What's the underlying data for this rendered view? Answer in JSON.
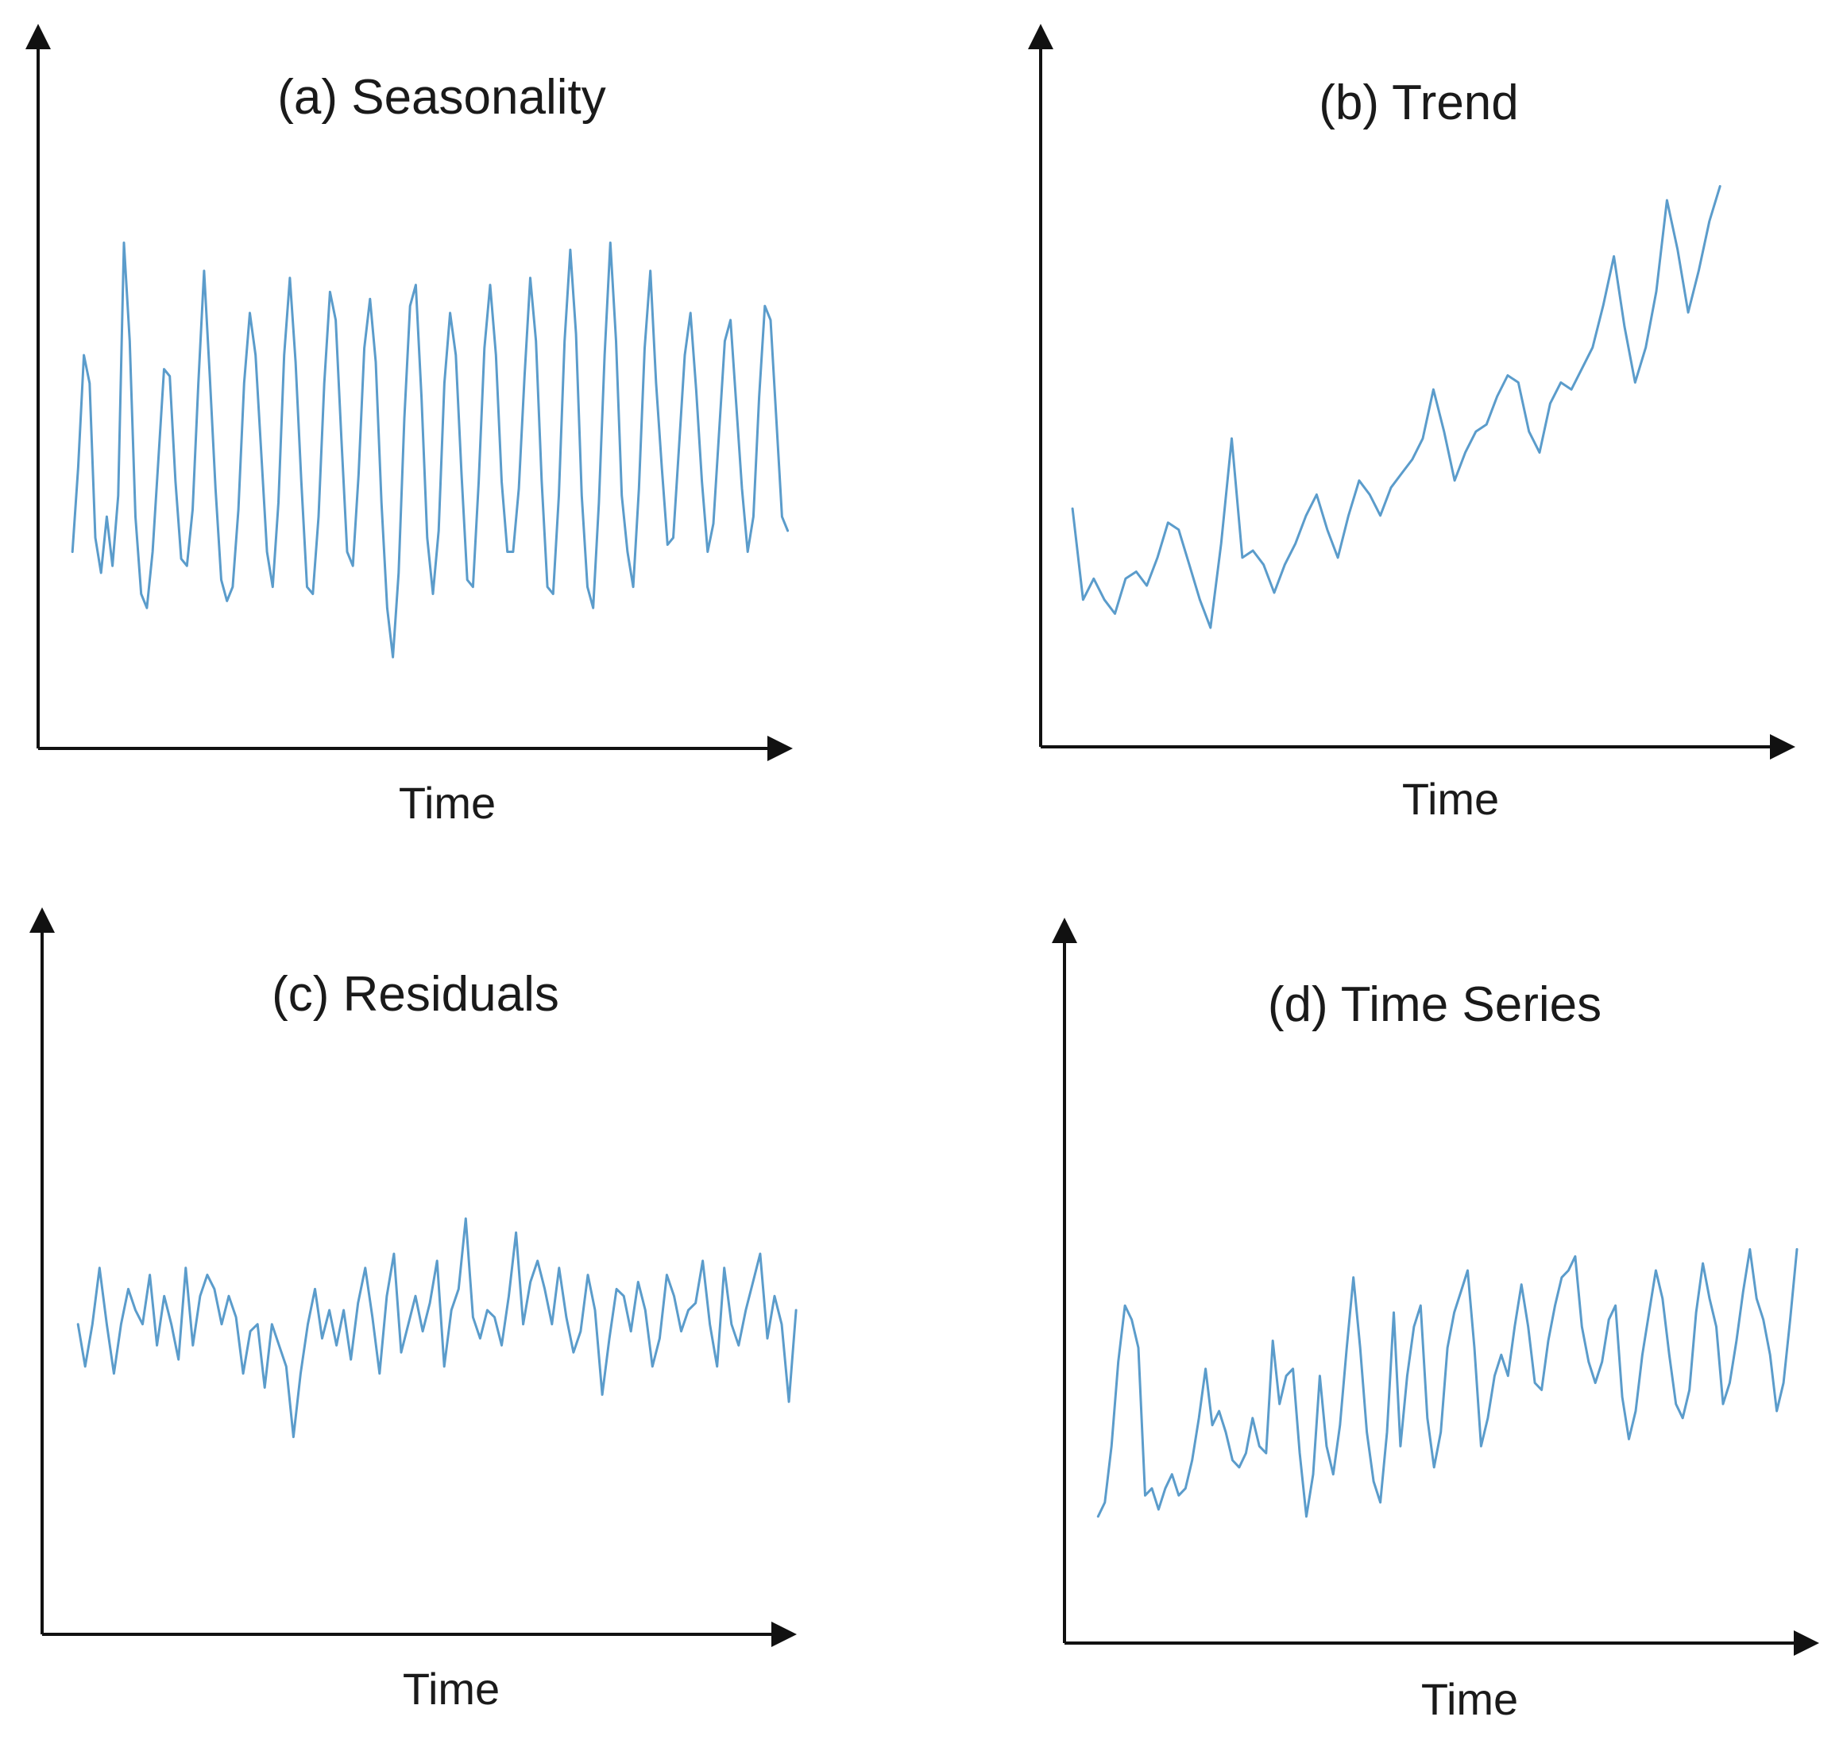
{
  "figure": {
    "line_color": "#5b9ccb",
    "axis_color": "#111111"
  },
  "chart_data": [
    {
      "id": "seasonality",
      "type": "line",
      "title": "(a) Seasonality",
      "xlabel": "Time",
      "ylabel": "",
      "xlim": [
        0,
        128
      ],
      "ylim": [
        0,
        100
      ],
      "values": [
        28,
        40,
        56,
        52,
        30,
        25,
        33,
        26,
        36,
        72,
        58,
        33,
        22,
        20,
        28,
        41,
        54,
        53,
        38,
        27,
        26,
        34,
        52,
        68,
        53,
        37,
        24,
        21,
        23,
        34,
        52,
        62,
        56,
        42,
        28,
        23,
        35,
        56,
        67,
        55,
        38,
        23,
        22,
        33,
        52,
        65,
        61,
        44,
        28,
        26,
        39,
        57,
        64,
        55,
        35,
        20,
        13,
        25,
        47,
        63,
        66,
        50,
        30,
        22,
        31,
        52,
        62,
        56,
        39,
        24,
        23,
        38,
        57,
        66,
        56,
        38,
        28,
        28,
        37,
        53,
        67,
        58,
        38,
        23,
        22,
        36,
        58,
        71,
        59,
        36,
        23,
        20,
        35,
        56,
        72,
        58,
        36,
        28,
        23,
        37,
        57,
        68,
        52,
        40,
        29,
        30,
        43,
        56,
        62,
        51,
        38,
        28,
        32,
        45,
        58,
        61,
        49,
        37,
        28,
        33,
        50,
        63,
        61,
        47,
        33,
        31
      ]
    },
    {
      "id": "trend",
      "type": "line",
      "title": "(b) Trend",
      "xlabel": "Time",
      "ylabel": "",
      "xlim": [
        0,
        69
      ],
      "ylim": [
        0,
        100
      ],
      "values": [
        34,
        21,
        24,
        21,
        19,
        24,
        25,
        23,
        27,
        32,
        31,
        26,
        21,
        17,
        29,
        44,
        27,
        28,
        26,
        22,
        26,
        29,
        33,
        36,
        31,
        27,
        33,
        38,
        36,
        33,
        37,
        39,
        41,
        44,
        51,
        45,
        38,
        42,
        45,
        46,
        50,
        53,
        52,
        45,
        42,
        49,
        52,
        51,
        54,
        57,
        63,
        70,
        60,
        52,
        57,
        65,
        78,
        71,
        62,
        68,
        75,
        80
      ]
    },
    {
      "id": "residuals",
      "type": "line",
      "title": "(c) Residuals",
      "xlabel": "Time",
      "ylabel": "",
      "xlim": [
        0,
        102
      ],
      "ylim": [
        0,
        100
      ],
      "values": [
        44,
        38,
        44,
        52,
        44,
        37,
        44,
        49,
        46,
        44,
        51,
        41,
        48,
        44,
        39,
        52,
        41,
        48,
        51,
        49,
        44,
        48,
        45,
        37,
        43,
        44,
        35,
        44,
        41,
        38,
        28,
        37,
        44,
        49,
        42,
        46,
        41,
        46,
        39,
        47,
        52,
        45,
        37,
        48,
        54,
        40,
        44,
        48,
        43,
        47,
        53,
        38,
        46,
        49,
        59,
        45,
        42,
        46,
        45,
        41,
        48,
        57,
        44,
        50,
        53,
        49,
        44,
        52,
        45,
        40,
        43,
        51,
        46,
        34,
        42,
        49,
        48,
        43,
        50,
        46,
        38,
        42,
        51,
        48,
        43,
        46,
        47,
        53,
        44,
        38,
        52,
        44,
        41,
        46,
        50,
        54,
        42,
        48,
        44,
        33,
        46
      ]
    },
    {
      "id": "time_series",
      "type": "line",
      "title": "(d) Time Series",
      "xlabel": "Time",
      "ylabel": "",
      "xlim": [
        0,
        109
      ],
      "ylim": [
        0,
        100
      ],
      "values": [
        18,
        20,
        28,
        40,
        48,
        46,
        42,
        21,
        22,
        19,
        22,
        24,
        21,
        22,
        26,
        32,
        39,
        31,
        33,
        30,
        26,
        25,
        27,
        32,
        28,
        27,
        43,
        34,
        38,
        39,
        27,
        18,
        24,
        38,
        28,
        24,
        31,
        42,
        52,
        42,
        30,
        23,
        20,
        30,
        47,
        28,
        38,
        45,
        48,
        32,
        25,
        30,
        42,
        47,
        50,
        53,
        42,
        28,
        32,
        38,
        41,
        38,
        45,
        51,
        45,
        37,
        36,
        43,
        48,
        52,
        53,
        55,
        45,
        40,
        37,
        40,
        46,
        48,
        35,
        29,
        33,
        41,
        47,
        53,
        49,
        41,
        34,
        32,
        36,
        47,
        54,
        49,
        45,
        34,
        37,
        43,
        50,
        56,
        49,
        46,
        41,
        33,
        37,
        46,
        56
      ]
    }
  ]
}
